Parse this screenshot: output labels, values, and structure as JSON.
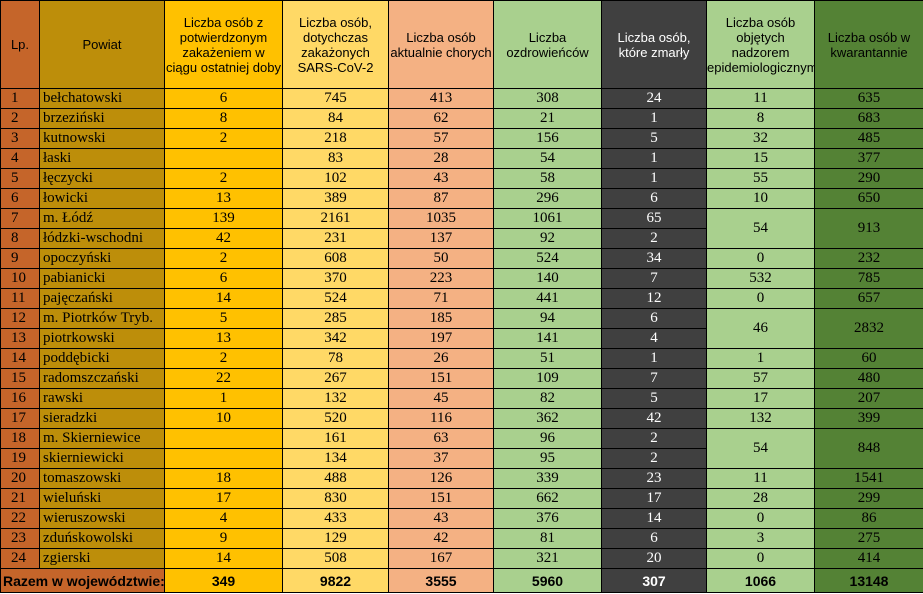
{
  "headers": {
    "lp": "Lp.",
    "powiat": "Powiat",
    "c1": "Liczba osób z potwierdzonym zakażeniem w ciągu ostatniej doby",
    "c2": "Liczba osób, dotychczas zakażonych SARS-CoV-2",
    "c3": "Liczba osób aktualnie chorych",
    "c4": "Liczba ozdrowieńców",
    "c5": "Liczba osób, które zmarły",
    "c6": "Liczba osób objętych nadzorem epidemiologicznym",
    "c7": "Liczba osób w kwarantannie"
  },
  "rows": [
    {
      "lp": "1",
      "powiat": "bełchatowski",
      "c1": "6",
      "c2": "745",
      "c3": "413",
      "c4": "308",
      "c5": "24",
      "c6": "11",
      "c7": "635"
    },
    {
      "lp": "2",
      "powiat": "brzeziński",
      "c1": "8",
      "c2": "84",
      "c3": "62",
      "c4": "21",
      "c5": "1",
      "c6": "8",
      "c7": "683"
    },
    {
      "lp": "3",
      "powiat": "kutnowski",
      "c1": "2",
      "c2": "218",
      "c3": "57",
      "c4": "156",
      "c5": "5",
      "c6": "32",
      "c7": "485"
    },
    {
      "lp": "4",
      "powiat": "łaski",
      "c1": "",
      "c2": "83",
      "c3": "28",
      "c4": "54",
      "c5": "1",
      "c6": "15",
      "c7": "377"
    },
    {
      "lp": "5",
      "powiat": "łęczycki",
      "c1": "2",
      "c2": "102",
      "c3": "43",
      "c4": "58",
      "c5": "1",
      "c6": "55",
      "c7": "290"
    },
    {
      "lp": "6",
      "powiat": "łowicki",
      "c1": "13",
      "c2": "389",
      "c3": "87",
      "c4": "296",
      "c5": "6",
      "c6": "10",
      "c7": "650"
    },
    {
      "lp": "7",
      "powiat": "m. Łódź",
      "c1": "139",
      "c2": "2161",
      "c3": "1035",
      "c4": "1061",
      "c5": "65",
      "c6": "54",
      "c7": "913"
    },
    {
      "lp": "8",
      "powiat": "łódzki-wschodni",
      "c1": "42",
      "c2": "231",
      "c3": "137",
      "c4": "92",
      "c5": "2"
    },
    {
      "lp": "9",
      "powiat": "opoczyński",
      "c1": "2",
      "c2": "608",
      "c3": "50",
      "c4": "524",
      "c5": "34",
      "c6": "0",
      "c7": "232"
    },
    {
      "lp": "10",
      "powiat": "pabianicki",
      "c1": "6",
      "c2": "370",
      "c3": "223",
      "c4": "140",
      "c5": "7",
      "c6": "532",
      "c7": "785"
    },
    {
      "lp": "11",
      "powiat": "pajęczański",
      "c1": "14",
      "c2": "524",
      "c3": "71",
      "c4": "441",
      "c5": "12",
      "c6": "0",
      "c7": "657"
    },
    {
      "lp": "12",
      "powiat": "m. Piotrków Tryb.",
      "c1": "5",
      "c2": "285",
      "c3": "185",
      "c4": "94",
      "c5": "6",
      "c6": "46",
      "c7": "2832"
    },
    {
      "lp": "13",
      "powiat": "piotrkowski",
      "c1": "13",
      "c2": "342",
      "c3": "197",
      "c4": "141",
      "c5": "4"
    },
    {
      "lp": "14",
      "powiat": "poddębicki",
      "c1": "2",
      "c2": "78",
      "c3": "26",
      "c4": "51",
      "c5": "1",
      "c6": "1",
      "c7": "60"
    },
    {
      "lp": "15",
      "powiat": "radomszczański",
      "c1": "22",
      "c2": "267",
      "c3": "151",
      "c4": "109",
      "c5": "7",
      "c6": "57",
      "c7": "480"
    },
    {
      "lp": "16",
      "powiat": "rawski",
      "c1": "1",
      "c2": "132",
      "c3": "45",
      "c4": "82",
      "c5": "5",
      "c6": "17",
      "c7": "207"
    },
    {
      "lp": "17",
      "powiat": "sieradzki",
      "c1": "10",
      "c2": "520",
      "c3": "116",
      "c4": "362",
      "c5": "42",
      "c6": "132",
      "c7": "399"
    },
    {
      "lp": "18",
      "powiat": "m. Skierniewice",
      "c1": "",
      "c2": "161",
      "c3": "63",
      "c4": "96",
      "c5": "2",
      "c6": "54",
      "c7": "848"
    },
    {
      "lp": "19",
      "powiat": "skierniewicki",
      "c1": "",
      "c2": "134",
      "c3": "37",
      "c4": "95",
      "c5": "2"
    },
    {
      "lp": "20",
      "powiat": "tomaszowski",
      "c1": "18",
      "c2": "488",
      "c3": "126",
      "c4": "339",
      "c5": "23",
      "c6": "11",
      "c7": "1541"
    },
    {
      "lp": "21",
      "powiat": "wieluński",
      "c1": "17",
      "c2": "830",
      "c3": "151",
      "c4": "662",
      "c5": "17",
      "c6": "28",
      "c7": "299"
    },
    {
      "lp": "22",
      "powiat": "wieruszowski",
      "c1": "4",
      "c2": "433",
      "c3": "43",
      "c4": "376",
      "c5": "14",
      "c6": "0",
      "c7": "86"
    },
    {
      "lp": "23",
      "powiat": "zduńskowolski",
      "c1": "9",
      "c2": "129",
      "c3": "42",
      "c4": "81",
      "c5": "6",
      "c6": "3",
      "c7": "275"
    },
    {
      "lp": "24",
      "powiat": "zgierski",
      "c1": "14",
      "c2": "508",
      "c3": "167",
      "c4": "321",
      "c5": "20",
      "c6": "0",
      "c7": "414"
    }
  ],
  "totals": {
    "label": "Razem w województwie:",
    "c1": "349",
    "c2": "9822",
    "c3": "3555",
    "c4": "5960",
    "c5": "307",
    "c6": "1066",
    "c7": "13148"
  },
  "colors": {
    "lp": "#c5652a",
    "powiat": "#bd8e0a",
    "c1": "#ffc100",
    "c2": "#ffd966",
    "c3": "#f4b183",
    "c4": "#a9d08e",
    "c5": "#404040",
    "c6": "#a9d08e",
    "c7": "#548235"
  }
}
